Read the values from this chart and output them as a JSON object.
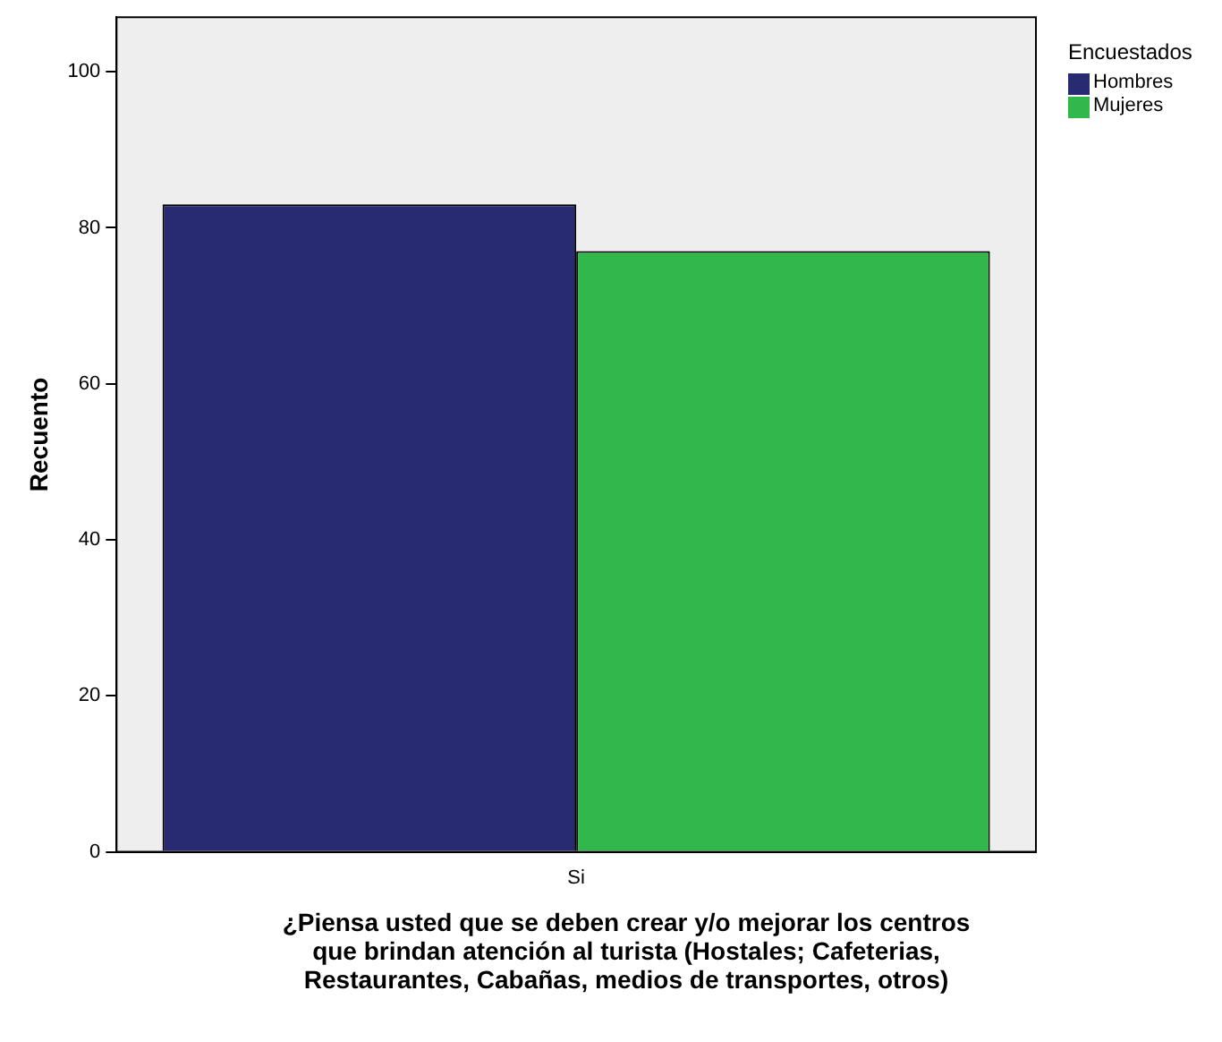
{
  "chart_data": {
    "type": "bar",
    "xlabel": "¿Piensa usted que se deben crear y/o mejorar los centros que brindan atención al turista (Hostales; Cafeterias, Restaurantes, Cabañas, medios de transportes, otros)",
    "ylabel": "Recuento",
    "legend_title": "Encuestados",
    "categories": [
      "Si"
    ],
    "series": [
      {
        "name": "Hombres",
        "color": "#282a72",
        "values": [
          83
        ]
      },
      {
        "name": "Mujeres",
        "color": "#30b84a",
        "values": [
          77
        ]
      }
    ],
    "ylim": [
      0,
      107
    ],
    "yticks": [
      0,
      20,
      40,
      60,
      80,
      100
    ],
    "grid": false,
    "legend": "top right"
  }
}
